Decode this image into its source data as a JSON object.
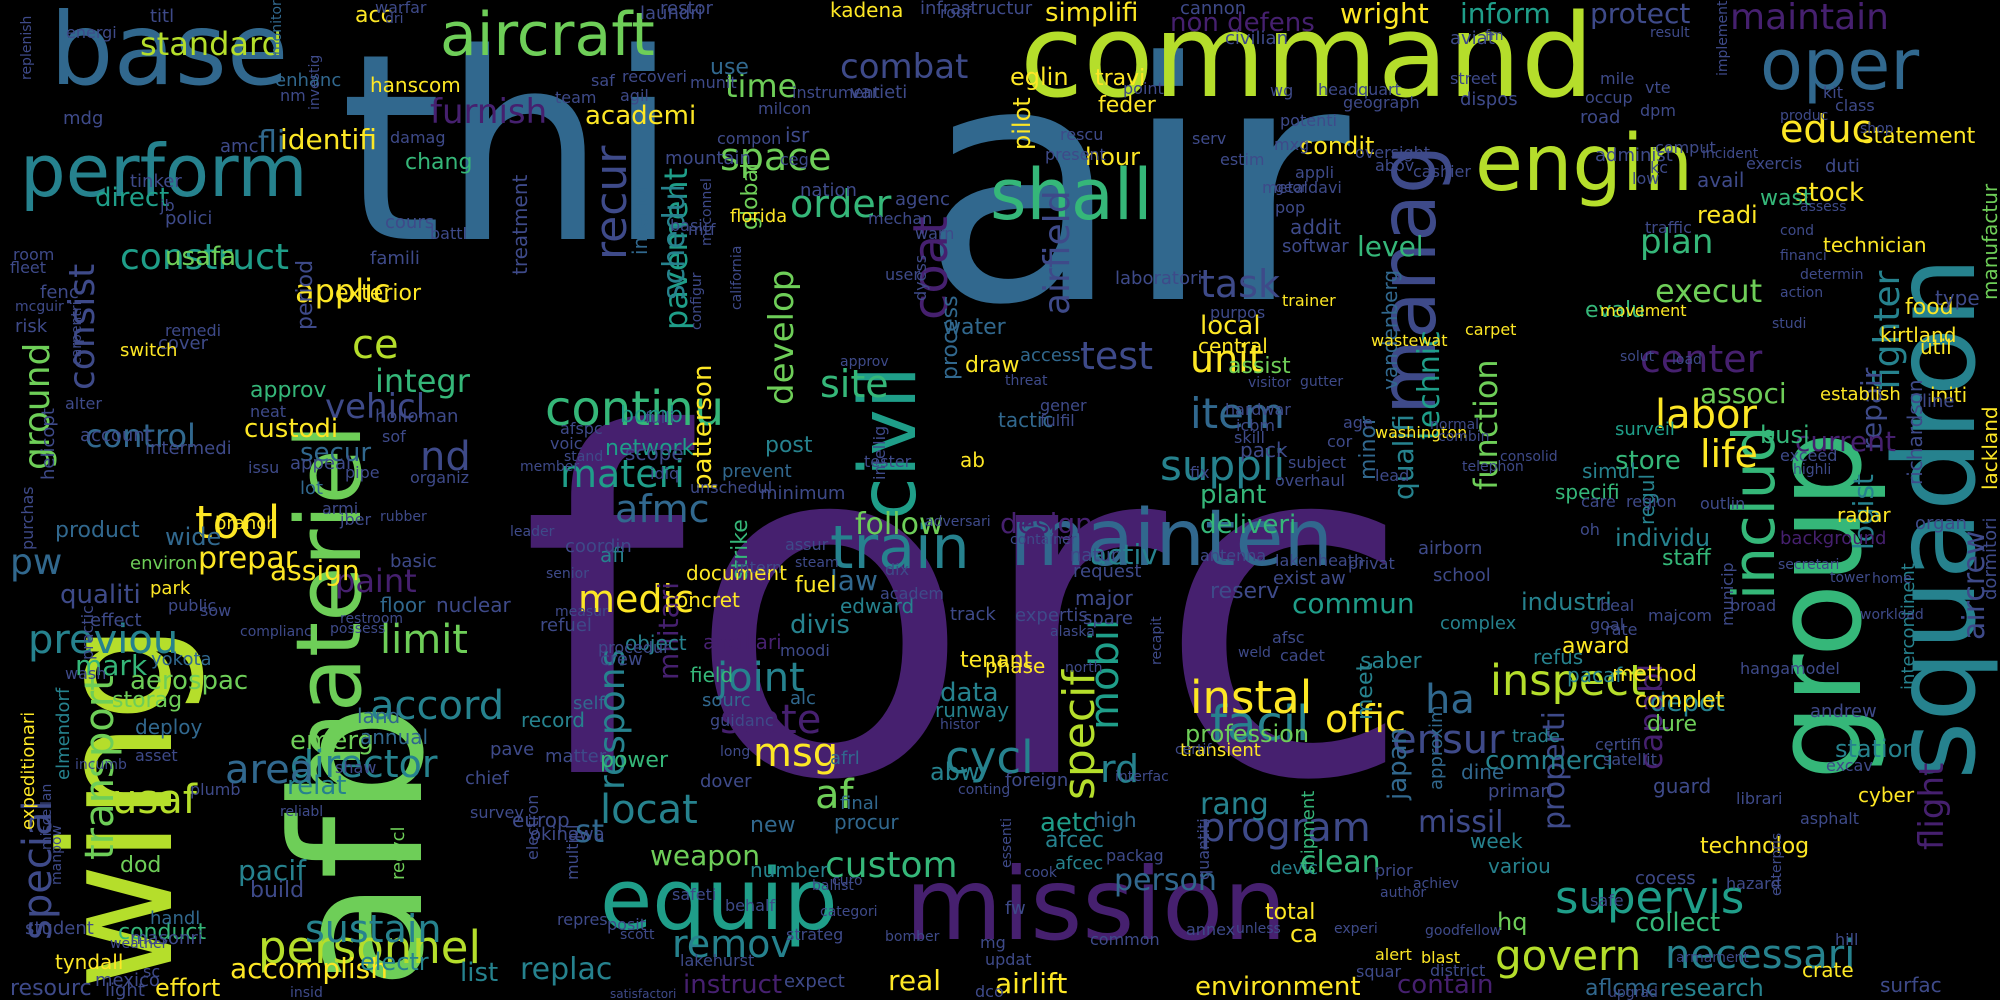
{
  "palette": {
    "background": "#000000",
    "dark_purple": "#46206f",
    "indigo": "#3e4a89",
    "slate_blue": "#31688e",
    "teal": "#26828e",
    "sea_green": "#1f9e89",
    "green": "#35b779",
    "light_green": "#6ece58",
    "lime": "#b5de2b",
    "yellow": "#fde725"
  },
  "words": {
    "forc": "forc",
    "air": "air",
    "thi": "thi",
    "afb": "afb",
    "wing": "wing",
    "command": "command",
    "group": "group",
    "squadron": "squadron",
    "mission": "mission",
    "equip": "equip",
    "base": "base",
    "materiel": "materiel",
    "civil": "civil",
    "maintain": "mainten",
    "engin": "engin",
    "manag": "manag",
    "aircraft": "aircraft",
    "perform": "perform",
    "shall": "shall",
    "oper": "oper",
    "train": "train",
    "includ": "includ",
    "continu": "continu",
    "facil": "facil",
    "instal": "instal",
    "personnel": "personnel",
    "supervis": "supervis",
    "inspect": "inspect",
    "govern": "govern",
    "necessari": "necessari",
    "accord": "accord",
    "director": "director",
    "transport": "transport",
    "usaf": "usaf",
    "sustain": "sustain",
    "program": "program",
    "cycl": "cycl",
    "tool": "tool",
    "previou": "previou",
    "medic": "medic",
    "limit": "limit",
    "materi": "materi",
    "control": "control",
    "construct": "construct",
    "applic": "applic",
    "standard": "standard",
    "furnish": "furnish",
    "combat": "combat",
    "space": "space",
    "order": "order",
    "develop": "develop",
    "pavement": "pavement",
    "recur": "recur",
    "consist": "consist",
    "task": "task",
    "unit": "unit",
    "suppli": "suppli",
    "item": "item",
    "test": "test",
    "site": "site",
    "coat": "coat",
    "airfield": "airfield",
    "schedul": "schedul",
    "technic": "technic",
    "qualifi": "qualifi",
    "function": "function",
    "center": "center",
    "labor": "labor",
    "fighter": "fighter",
    "repair": "repair",
    "logist": "logist",
    "life": "life",
    "associ": "associ",
    "educ": "educ",
    "maintain_word": "maintain",
    "inform": "inform",
    "protect": "protect",
    "wright": "wright",
    "simplifi": "simplifi",
    "nondefense": "non defens",
    "time": "time",
    "identifi": "identifi",
    "academi": "academi",
    "fli": "fli",
    "direct": "direct",
    "usafa": "usafa",
    "ce": "ce",
    "integr": "integr",
    "ground": "ground",
    "vehicl": "vehicl",
    "nd": "nd",
    "afmc": "afmc",
    "paint": "paint",
    "follow": "follow",
    "design": "design",
    "specif": "specif",
    "mobil": "mobil",
    "rd": "rd",
    "rang": "rang",
    "ensur": "ensur",
    "ha": "ha",
    "offic": "offic",
    "locat": "locat",
    "custom": "custom",
    "af": "af",
    "msg": "msg",
    "state": "state",
    "joint": "joint",
    "respons": "respons",
    "militari": "militari",
    "remov": "remov",
    "capabl": "capabl",
    "properti": "properti",
    "flight": "flight",
    "aircrew": "aircrew",
    "area": "area",
    "special": "special",
    "pw": "pw",
    "stat": "st",
    "accomplish": "accomplish",
    "effort": "effort",
    "airlift": "airlift",
    "environment": "environment",
    "real": "real",
    "instruct": "instruct",
    "contain": "contain",
    "aflcmc": "aflcmc",
    "research": "research",
    "plan": "plan",
    "level": "level",
    "execut": "execut",
    "current": "current",
    "commun": "commun",
    "missil": "missil",
    "clean": "clean",
    "person": "person",
    "weapon": "weapon",
    "pacif": "pacif",
    "build": "build",
    "replac": "replac",
    "list": "list",
    "electr": "electr",
    "aetc": "aetc",
    "afcec": "afcec",
    "network": "network",
    "activ": "activ",
    "law": "law",
    "assign": "assign",
    "prepar": "prepar",
    "qualiti": "qualiti",
    "mark": "mark",
    "relat": "relat",
    "aerospac": "aerospac",
    "custodi": "custodi",
    "secur": "secur",
    "deliveri": "deliveri",
    "plant": "plant",
    "profession": "profession",
    "commerci": "commerci",
    "individu": "individu",
    "industri": "industri",
    "store": "store",
    "busi": "busi",
    "readi": "readi",
    "stock": "stock",
    "wast": "wast",
    "evalu": "evalu",
    "depot": "depot",
    "data": "data",
    "emerg": "emerg",
    "tenant": "tenant",
    "award": "award",
    "method": "method",
    "complet": "complet",
    "dure": "dure",
    "station": "station",
    "technolog": "technolog",
    "collect": "collect",
    "hq": "hq",
    "ca": "ca",
    "total": "total",
    "hour": "hour",
    "condit": "condit",
    "travi": "travi",
    "feder": "feder",
    "eglin": "eglin",
    "chang": "chang",
    "local": "local",
    "central": "central",
    "assist": "assist",
    "food": "food",
    "technician": "technician",
    "manufactur": "manufactur",
    "statement": "statement",
    "radar": "radar",
    "util": "util",
    "dod": "dod",
    "conduct": "conduct",
    "resourc": "resourc",
    "tyndall": "tyndall",
    "storag": "storag",
    "wide": "wide",
    "product": "product",
    "use": "use",
    "hanscom": "hanscom",
    "acc": "acc",
    "patterson": "patterson",
    "divis": "divis",
    "interior": "interior",
    "global": "global",
    "strike": "strike",
    "exterior": "exterior",
    "approv": "approv",
    "period": "period",
    "afb_small": "afi",
    "bomb": "bomb",
    "post": "post",
    "new": "new",
    "pilot": "pilot",
    "process": "process",
    "water": "water",
    "draw": "draw",
    "japan": "japan",
    "saber": "saber",
    "meet": "meet",
    "vandenberg": "vandenberg",
    "guard": "guard",
    "background": "background",
    "afcesa": "afcec",
    "cyber": "cyber",
    "crate": "crate",
    "surfac": "surfac",
    "kirtland": "kirtland",
    "richardson": "richardson",
    "lackland": "lackland",
    "initi": "initi",
    "type": "type",
    "line": "line",
    "dormitori": "dormitori",
    "organ": "organ",
    "intercontinent": "intercontinent",
    "staff": "staff",
    "reserv": "reserv",
    "edward": "edward",
    "fuel": "fuel",
    "document": "document",
    "concret": "concret",
    "ancillari": "ancillari",
    "object": "object",
    "field": "field",
    "number": "number",
    "power": "power",
    "record": "record",
    "land": "land",
    "annual": "annual",
    "sourc": "sourc",
    "alc": "alc",
    "runway": "runway",
    "abw": "abw",
    "foreign": "foreign",
    "phase": "phase",
    "high": "high",
    "ab": "ab",
    "tactic": "tactic",
    "surveil": "surveil",
    "complex": "complex",
    "simul": "simul",
    "minor": "minor",
    "refus": "refus",
    "pacaf": "pacaf",
    "regul": "regul",
    "specifi": "specifi",
    "floor": "floor",
    "nuclear": "nuclear",
    "refuel": "refuel",
    "treatment": "treatment",
    "branch": "branch",
    "environ": "environ",
    "park": "park",
    "yokota": "yokota",
    "lot": "lot",
    "approx": "approxim",
    "transient": "transient",
    "devic": "devic",
    "shipment": "shipment",
    "variou": "variou",
    "week": "week",
    "dine": "dine",
    "trade": "trade",
    "primari": "primari",
    "europ": "europ",
    "okinawa": "okinawa",
    "recycl": "recycl",
    "masonri": "masonri",
    "handl": "handl",
    "expeditionari": "expeditionari",
    "elmendorf": "elmendorf",
    "deploy": "deploy",
    "aviat": "aviat",
    "kadena": "kadena",
    "infrastructur": "infrastructur",
    "laundri": "laundri",
    "restor": "restor",
    "civilian": "civilian",
    "cannon": "cannon",
    "monitor": "monitor",
    "enhanc": "enhanc",
    "varieti": "varieti",
    "mountain": "mountain",
    "nation": "nation",
    "florida": "florida",
    "laboratori": "laboratori",
    "washington": "washington",
    "trainer": "trainer",
    "carpet": "carpet",
    "wastewat": "wastewat",
    "movement": "movement",
    "establish": "establish",
    "access": "access",
    "scope": "scope",
    "minimum": "minimum",
    "prevent": "prevent",
    "holloman": "holloman",
    "intermedi": "intermedi",
    "account": "account",
    "helicopt": "helicopt",
    "purchas": "purchas",
    "student": "student",
    "mexico": "mexico",
    "light": "light",
    "effect": "effect",
    "practic": "practic",
    "wash": "wash",
    "incumb": "incumb",
    "plumb": "plumb",
    "asset": "asset",
    "shaw": "shaw",
    "survey": "survey",
    "chief": "chief",
    "pave": "pave",
    "matter": "matter",
    "self": "self",
    "procur": "procur",
    "dover": "dover",
    "final": "final",
    "afrl": "afrl",
    "antenna": "antenna",
    "lakenheath": "lakenheath",
    "privat": "privat",
    "exist": "exist",
    "aw": "aw",
    "major": "major",
    "natur": "natur",
    "request": "request",
    "spare": "spare",
    "track": "track",
    "expertis": "expertis",
    "school": "school",
    "airborn": "airborn",
    "goal": "goal",
    "beal": "beal",
    "rate": "rate",
    "majcom": "majcom",
    "region": "region",
    "broad": "broad",
    "municip": "municip",
    "hangar": "hangar",
    "model": "model",
    "andrew": "andrew",
    "excav": "excav",
    "librari": "librari",
    "asphalt": "asphalt",
    "hazard": "hazard",
    "hill": "hill",
    "armament": "armament",
    "enterpris": "enterpris",
    "alert": "alert",
    "blast": "blast",
    "squar": "squar",
    "goodfellow": "goodfellow",
    "district": "district",
    "cocess": "cocess",
    "safe": "safe",
    "satellit": "satellit",
    "certifi": "certifi",
    "bomber": "bomber",
    "author": "author",
    "prior": "prior",
    "achiev": "achiev",
    "upgrad": "upgrad",
    "satisfactori": "satisfactori",
    "insid": "insid",
    "sc": "sc",
    "expect": "expect",
    "dco": "dco",
    "repres": "repres",
    "posit": "posit",
    "strateg": "strateg",
    "lakehurst": "lakehurst",
    "categori": "categori",
    "safeti": "safeti",
    "behalf": "behalf",
    "common": "common",
    "updat": "updat",
    "mg": "mg",
    "fw": "fw",
    "annex": "annex",
    "unless": "unless",
    "quantiti": "quantiti",
    "experi": "experi",
    "ballist": "ballist",
    "packag": "packag",
    "cook": "cook",
    "essenti": "essenti",
    "packag2": "pack",
    "recapit": "recapit",
    "interfac": "interfac",
    "titl": "titl",
    "energi": "energi",
    "replenish": "replenish",
    "mdg": "mdg",
    "tinker": "tinker",
    "amc": "amc",
    "nm": "nm",
    "investig": "investig",
    "jb": "jb",
    "cours": "cours",
    "famili": "famili",
    "polici": "polici",
    "battl": "battl",
    "fence": "fenc",
    "fleet": "fleet",
    "room": "room",
    "mcguir": "mcguir",
    "risk": "risk",
    "remedi": "remedi",
    "cover": "cover",
    "switch": "switch",
    "alter": "alter",
    "carpentri": "carpentri",
    "neat": "neat",
    "sof": "sof",
    "afspc": "afspc",
    "voic": "voic",
    "pipe": "pipe",
    "armi": "armi",
    "jber": "jber",
    "issu": "issu",
    "appeal": "appeal",
    "stand": "stand",
    "member": "member",
    "organiz": "organiz",
    "subject": "subject",
    "age": "age",
    "cor": "cor",
    "icbm": "icbm",
    "skill": "skill",
    "overhaul": "overhaul",
    "lead": "lead",
    "hardwar": "hardwar",
    "gener": "gener",
    "fulfil": "fulfil",
    "threat": "threat",
    "addit": "addit",
    "softwar": "softwar",
    "pop": "pop",
    "davi": "davi",
    "appli": "appli",
    "metal": "metal",
    "potenti": "potenti",
    "estim": "estim",
    "serv": "serv",
    "wg": "wg",
    "headquart": "headquart",
    "geograph": "geograph",
    "oversight": "oversight",
    "abov": "abov",
    "cashier": "cashier",
    "mxg": "mxg",
    "fix": "fix",
    "gear": "geor",
    "telephon": "telephon",
    "consolid": "consolid",
    "oh": "oh",
    "care": "care",
    "outlin": "outlin",
    "secretari": "secretari",
    "tower": "tower",
    "home": "home",
    "workload": "workload",
    "road": "road",
    "occup": "occup",
    "mile": "mile",
    "dpm": "dpm",
    "vte": "vte",
    "implement": "implement",
    "kit": "kit",
    "class": "class",
    "duti": "duti",
    "avail": "avail",
    "comput": "comput",
    "incident": "incident",
    "exercis": "exercis",
    "low": "low",
    "kc": "kc",
    "financi": "financi",
    "determin": "determin",
    "action": "action",
    "studi": "studi",
    "solut": "solut",
    "load": "load",
    "traffic": "traffic",
    "cond": "cond",
    "assess": "assess",
    "shop": "shop",
    "produc": "produc",
    "street": "street",
    "result": "result",
    "dispos": "dispos",
    "fm": "fm",
    "point": "point",
    "milcon": "milcon",
    "instrument": "instrument",
    "agil": "agil",
    "munit": "munit",
    "recoveri": "recoveri",
    "saf": "saf",
    "team": "team",
    "damag": "damag",
    "compon": "compon",
    "ceg": "ceg",
    "isr": "isr",
    "rescu": "rescu",
    "present": "present",
    "metr": "mtf",
    "mcconnel": "mcconnel",
    "california": "california",
    "basi": "basi",
    "mechan": "mechan",
    "warn": "warn",
    "agenc": "agenc",
    "user": "user",
    "dyess": "dyess",
    "configur": "configur",
    "purpos": "purpos",
    "idiq": "idiq",
    "fulli": "fulli",
    "tester": "tester",
    "intellig": "intellig",
    "unschedul": "unschedul",
    "dix": "dix",
    "academ": "academ",
    "steam": "steam",
    "assur": "assur",
    "intern": "intern",
    "coordin": "coordin",
    "leader": "leader",
    "basic": "basic",
    "restroom": "restroom",
    "possess": "possess",
    "complianc": "complianc",
    "sow": "sow",
    "public": "public",
    "crew": "crew",
    "procedur": "procedur",
    "moodi": "moodi",
    "alaska": "alaska",
    "cadet": "cadet",
    "weld": "weld",
    "afsc": "afsc",
    "guidanc": "guidanc",
    "conting": "conting",
    "histor": "histor",
    "certif": "certif",
    "long": "long",
    "electron": "electron",
    "multipl": "multipl",
    "reliabl": "reliabl",
    "manpow": "manpow",
    "miscellan": "miscellan",
    "weather": "weather",
    "scott": "scott",
    "curo": "curo",
    "rubber": "rubber",
    "senior": "senior",
    "measur": "measur",
    "north": "north",
    "contract_small": "container",
    "normal": "normal",
    "combin": "combin",
    "access2": "approv",
    "visitor": "visitor",
    "adversari": "adversari",
    "gutter": "gutter",
    "exceed": "exceed",
    "highli": "highli",
    "adminis": "administ",
    "roof": "roof",
    "warfar": "warfar",
    "dri": "dri",
    "contract": "contract"
  }
}
